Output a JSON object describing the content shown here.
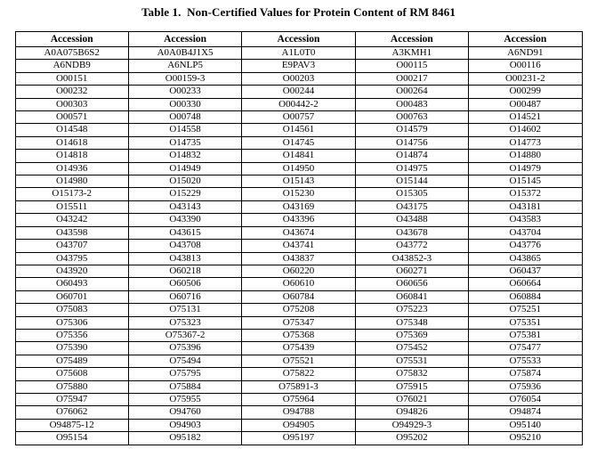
{
  "title": "Table 1.  Non-Certified Values for Protein Content of RM 8461",
  "table": {
    "headers": [
      "Accession",
      "Accession",
      "Accession",
      "Accession",
      "Accession"
    ],
    "rows": [
      [
        "A0A075B6S2",
        "A0A0B4J1X5",
        "A1L0T0",
        "A3KMH1",
        "A6ND91"
      ],
      [
        "A6NDB9",
        "A6NLP5",
        "E9PAV3",
        "O00115",
        "O00116"
      ],
      [
        "O00151",
        "O00159-3",
        "O00203",
        "O00217",
        "O00231-2"
      ],
      [
        "O00232",
        "O00233",
        "O00244",
        "O00264",
        "O00299"
      ],
      [
        "O00303",
        "O00330",
        "O00442-2",
        "O00483",
        "O00487"
      ],
      [
        "O00571",
        "O00748",
        "O00757",
        "O00763",
        "O14521"
      ],
      [
        "O14548",
        "O14558",
        "O14561",
        "O14579",
        "O14602"
      ],
      [
        "O14618",
        "O14735",
        "O14745",
        "O14756",
        "O14773"
      ],
      [
        "O14818",
        "O14832",
        "O14841",
        "O14874",
        "O14880"
      ],
      [
        "O14936",
        "O14949",
        "O14950",
        "O14975",
        "O14979"
      ],
      [
        "O14980",
        "O15020",
        "O15143",
        "O15144",
        "O15145"
      ],
      [
        "O15173-2",
        "O15229",
        "O15230",
        "O15305",
        "O15372"
      ],
      [
        "O15511",
        "O43143",
        "O43169",
        "O43175",
        "O43181"
      ],
      [
        "O43242",
        "O43390",
        "O43396",
        "O43488",
        "O43583"
      ],
      [
        "O43598",
        "O43615",
        "O43674",
        "O43678",
        "O43704"
      ],
      [
        "O43707",
        "O43708",
        "O43741",
        "O43772",
        "O43776"
      ],
      [
        "O43795",
        "O43813",
        "O43837",
        "O43852-3",
        "O43865"
      ],
      [
        "O43920",
        "O60218",
        "O60220",
        "O60271",
        "O60437"
      ],
      [
        "O60493",
        "O60506",
        "O60610",
        "O60656",
        "O60664"
      ],
      [
        "O60701",
        "O60716",
        "O60784",
        "O60841",
        "O60884"
      ],
      [
        "O75083",
        "O75131",
        "O75208",
        "O75223",
        "O75251"
      ],
      [
        "O75306",
        "O75323",
        "O75347",
        "O75348",
        "O75351"
      ],
      [
        "O75356",
        "O75367-2",
        "O75368",
        "O75369",
        "O75381"
      ],
      [
        "O75390",
        "O75396",
        "O75439",
        "O75452",
        "O75477"
      ],
      [
        "O75489",
        "O75494",
        "O75521",
        "O75531",
        "O75533"
      ],
      [
        "O75608",
        "O75795",
        "O75822",
        "O75832",
        "O75874"
      ],
      [
        "O75880",
        "O75884",
        "O75891-3",
        "O75915",
        "O75936"
      ],
      [
        "O75947",
        "O75955",
        "O75964",
        "O76021",
        "O76054"
      ],
      [
        "O76062",
        "O94760",
        "O94788",
        "O94826",
        "O94874"
      ],
      [
        "O94875-12",
        "O94903",
        "O94905",
        "O94929-3",
        "O95140"
      ],
      [
        "O95154",
        "O95182",
        "O95197",
        "O95202",
        "O95210"
      ]
    ]
  }
}
